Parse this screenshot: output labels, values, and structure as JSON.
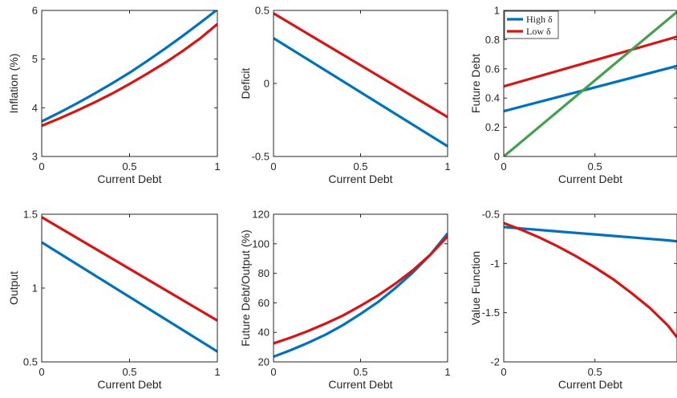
{
  "colors": {
    "high": "#0072bd",
    "low": "#d81414",
    "diag": "#44a050",
    "axis": "#262626"
  },
  "chart_data": [
    {
      "type": "line",
      "xlabel": "Current Debt",
      "ylabel": "Inflation (%)",
      "xlim": [
        0,
        1
      ],
      "ylim": [
        3,
        6
      ],
      "xticks": [
        0,
        0.5,
        1
      ],
      "xtick_labels": [
        "0",
        "0.5",
        "1"
      ],
      "yticks": [
        3,
        4,
        5,
        6
      ],
      "ytick_labels": [
        "3",
        "4",
        "5",
        "6"
      ],
      "x": [
        0,
        0.1,
        0.2,
        0.3,
        0.4,
        0.5,
        0.6,
        0.7,
        0.8,
        0.9,
        1.0
      ],
      "series": [
        {
          "key": "high",
          "color": "#0072bd",
          "values": [
            3.72,
            3.9,
            4.09,
            4.29,
            4.5,
            4.72,
            4.96,
            5.21,
            5.47,
            5.74,
            6.02
          ]
        },
        {
          "key": "low",
          "color": "#d81414",
          "values": [
            3.63,
            3.78,
            3.94,
            4.11,
            4.29,
            4.49,
            4.7,
            4.92,
            5.16,
            5.42,
            5.72
          ]
        }
      ]
    },
    {
      "type": "line",
      "xlabel": "Current Debt",
      "ylabel": "Deficit",
      "xlim": [
        0,
        1
      ],
      "ylim": [
        -0.5,
        0.5
      ],
      "xticks": [
        0,
        0.5,
        1
      ],
      "xtick_labels": [
        "0",
        "0.5",
        "1"
      ],
      "yticks": [
        -0.5,
        0,
        0.5
      ],
      "ytick_labels": [
        "-0.5",
        "0",
        "0.5"
      ],
      "x": [
        0,
        1
      ],
      "series": [
        {
          "key": "high",
          "color": "#0072bd",
          "values": [
            0.31,
            -0.43
          ]
        },
        {
          "key": "low",
          "color": "#d81414",
          "values": [
            0.48,
            -0.23
          ]
        }
      ]
    },
    {
      "type": "line",
      "xlabel": "Current Debt",
      "ylabel": "Future Debt",
      "xlim": [
        0,
        0.95
      ],
      "ylim": [
        0,
        1
      ],
      "xticks": [
        0,
        0.5
      ],
      "xtick_labels": [
        "0",
        "0.5"
      ],
      "yticks": [
        0,
        0.2,
        0.4,
        0.6,
        0.8,
        1
      ],
      "ytick_labels": [
        "0",
        "0.2",
        "0.4",
        "0.6",
        "0.8",
        "1"
      ],
      "x": [
        0,
        0.95
      ],
      "series": [
        {
          "key": "high",
          "name": "High δ",
          "color": "#0072bd",
          "values": [
            0.31,
            0.62
          ]
        },
        {
          "key": "low",
          "name": "Low δ",
          "color": "#d81414",
          "values": [
            0.48,
            0.82
          ]
        },
        {
          "key": "diag",
          "color": "#44a050",
          "values": [
            0,
            0.99
          ]
        }
      ],
      "legend": {
        "position": "top-left",
        "entries": [
          "High δ",
          "Low δ"
        ]
      }
    },
    {
      "type": "line",
      "xlabel": "Current Debt",
      "ylabel": "Output",
      "xlim": [
        0,
        1
      ],
      "ylim": [
        0.5,
        1.5
      ],
      "xticks": [
        0,
        0.5,
        1
      ],
      "xtick_labels": [
        "0",
        "0.5",
        "1"
      ],
      "yticks": [
        0.5,
        1,
        1.5
      ],
      "ytick_labels": [
        "0.5",
        "1",
        "1.5"
      ],
      "x": [
        0,
        1
      ],
      "series": [
        {
          "key": "high",
          "color": "#0072bd",
          "values": [
            1.31,
            0.57
          ]
        },
        {
          "key": "low",
          "color": "#d81414",
          "values": [
            1.48,
            0.78
          ]
        }
      ]
    },
    {
      "type": "line",
      "xlabel": "Current Debt",
      "ylabel": "Future Debt/Output (%)",
      "xlim": [
        0,
        1
      ],
      "ylim": [
        20,
        120
      ],
      "xticks": [
        0,
        0.5,
        1
      ],
      "xtick_labels": [
        "0",
        "0.5",
        "1"
      ],
      "yticks": [
        20,
        40,
        60,
        80,
        100,
        120
      ],
      "ytick_labels": [
        "20",
        "40",
        "60",
        "80",
        "100",
        "120"
      ],
      "x": [
        0,
        0.1,
        0.2,
        0.3,
        0.4,
        0.5,
        0.6,
        0.7,
        0.8,
        0.9,
        1.0
      ],
      "series": [
        {
          "key": "high",
          "color": "#0072bd",
          "values": [
            23.5,
            28.0,
            33.0,
            38.5,
            45.0,
            52.5,
            60.5,
            70.0,
            80.5,
            92.5,
            107.0
          ]
        },
        {
          "key": "low",
          "color": "#d81414",
          "values": [
            32.5,
            36.5,
            41.0,
            46.0,
            51.5,
            58.0,
            65.0,
            73.0,
            82.0,
            92.5,
            105.0
          ]
        }
      ]
    },
    {
      "type": "line",
      "xlabel": "Current Debt",
      "ylabel": "Value Function",
      "xlim": [
        0,
        0.95
      ],
      "ylim": [
        -2,
        -0.5
      ],
      "xticks": [
        0,
        0.5
      ],
      "xtick_labels": [
        "0",
        "0.5"
      ],
      "yticks": [
        -2,
        -1.5,
        -1,
        -0.5
      ],
      "ytick_labels": [
        "-2",
        "-1.5",
        "-1",
        "-0.5"
      ],
      "x": [
        0,
        0.1,
        0.2,
        0.3,
        0.4,
        0.5,
        0.6,
        0.7,
        0.8,
        0.9,
        0.95
      ],
      "series": [
        {
          "key": "high",
          "color": "#0072bd",
          "values": [
            -0.63,
            -0.645,
            -0.66,
            -0.675,
            -0.69,
            -0.705,
            -0.72,
            -0.735,
            -0.75,
            -0.765,
            -0.775
          ]
        },
        {
          "key": "low",
          "color": "#d81414",
          "values": [
            -0.59,
            -0.66,
            -0.74,
            -0.83,
            -0.93,
            -1.04,
            -1.16,
            -1.3,
            -1.45,
            -1.63,
            -1.75
          ]
        }
      ]
    }
  ]
}
